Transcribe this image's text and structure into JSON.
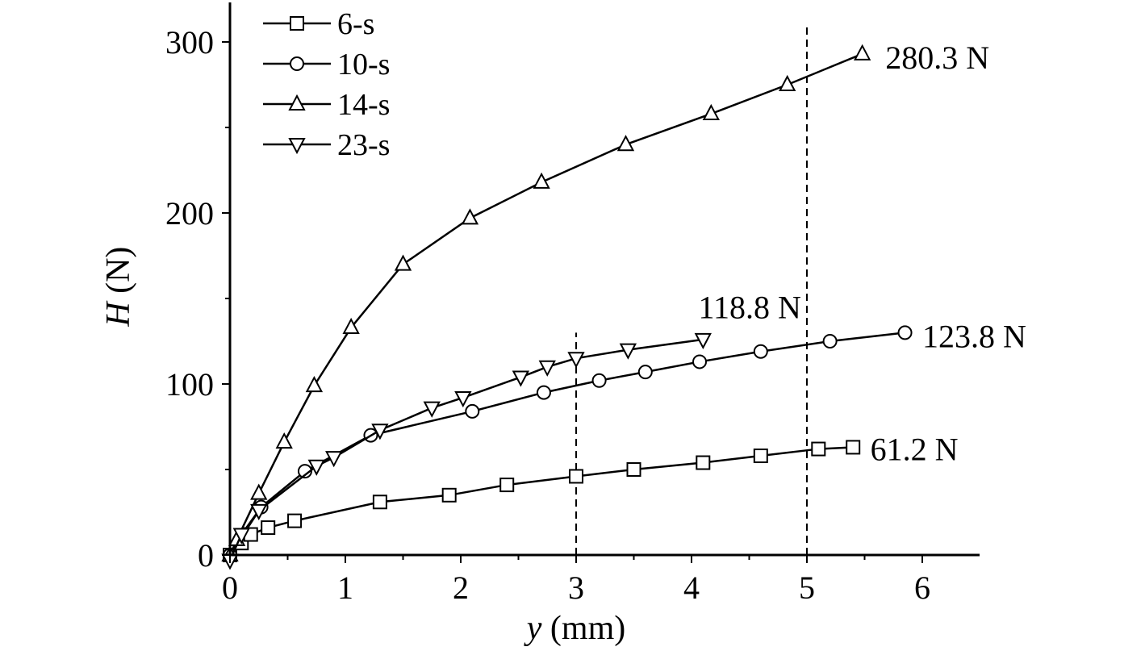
{
  "chart_data": {
    "type": "line",
    "title": "",
    "xlabel_italic": "y",
    "xlabel_rest": " (mm)",
    "ylabel_italic": "H",
    "ylabel_rest": " (N)",
    "xlim": [
      0,
      6.5
    ],
    "ylim": [
      0,
      325
    ],
    "xticks": [
      0,
      1,
      2,
      3,
      4,
      5,
      6
    ],
    "yticks": [
      0,
      100,
      200,
      300
    ],
    "xtick_labels": [
      "0",
      "1",
      "2",
      "3",
      "4",
      "5",
      "6"
    ],
    "ytick_labels": [
      "0",
      "100",
      "200",
      "300"
    ],
    "grid": false,
    "legend_position": "top-left",
    "reference_lines": [
      {
        "x": 3,
        "y_top": 130
      },
      {
        "x": 5,
        "y_top": 310
      }
    ],
    "series": [
      {
        "name": "6-s",
        "marker": "square",
        "x": [
          0,
          0.1,
          0.18,
          0.33,
          0.56,
          1.3,
          1.9,
          2.4,
          3.0,
          3.5,
          4.1,
          4.6,
          5.1,
          5.4
        ],
        "y": [
          0,
          7,
          12,
          16,
          20,
          31,
          35,
          41,
          46,
          50,
          54,
          58,
          62,
          63
        ]
      },
      {
        "name": "10-s",
        "marker": "circle",
        "x": [
          0,
          0.27,
          0.65,
          1.22,
          2.1,
          2.72,
          3.2,
          3.6,
          4.07,
          4.6,
          5.2,
          5.85
        ],
        "y": [
          0,
          28,
          49,
          70,
          84,
          95,
          102,
          107,
          113,
          119,
          125,
          130
        ]
      },
      {
        "name": "14-s",
        "marker": "triangle-up",
        "x": [
          0,
          0.06,
          0.25,
          0.47,
          0.73,
          1.05,
          1.5,
          2.08,
          2.7,
          3.43,
          4.17,
          4.83,
          5.48
        ],
        "y": [
          0,
          9,
          36,
          66,
          99,
          133,
          170,
          197,
          218,
          240,
          258,
          275,
          293
        ]
      },
      {
        "name": "23-s",
        "marker": "triangle-down",
        "x": [
          0,
          0.1,
          0.25,
          0.75,
          0.9,
          1.3,
          1.75,
          2.02,
          2.52,
          2.75,
          3.0,
          3.45,
          4.1
        ],
        "y": [
          -3,
          12,
          26,
          52,
          57,
          73,
          86,
          92,
          104,
          110,
          115,
          120,
          126
        ]
      }
    ],
    "annotations": [
      {
        "text": "280.3 N",
        "x": 5.68,
        "y": 291,
        "anchor": "start"
      },
      {
        "text": "118.8 N",
        "x": 4.95,
        "y": 145,
        "anchor": "end"
      },
      {
        "text": "123.8 N",
        "x": 6.0,
        "y": 128,
        "anchor": "start"
      },
      {
        "text": "61.2 N",
        "x": 5.55,
        "y": 62,
        "anchor": "start"
      }
    ]
  }
}
